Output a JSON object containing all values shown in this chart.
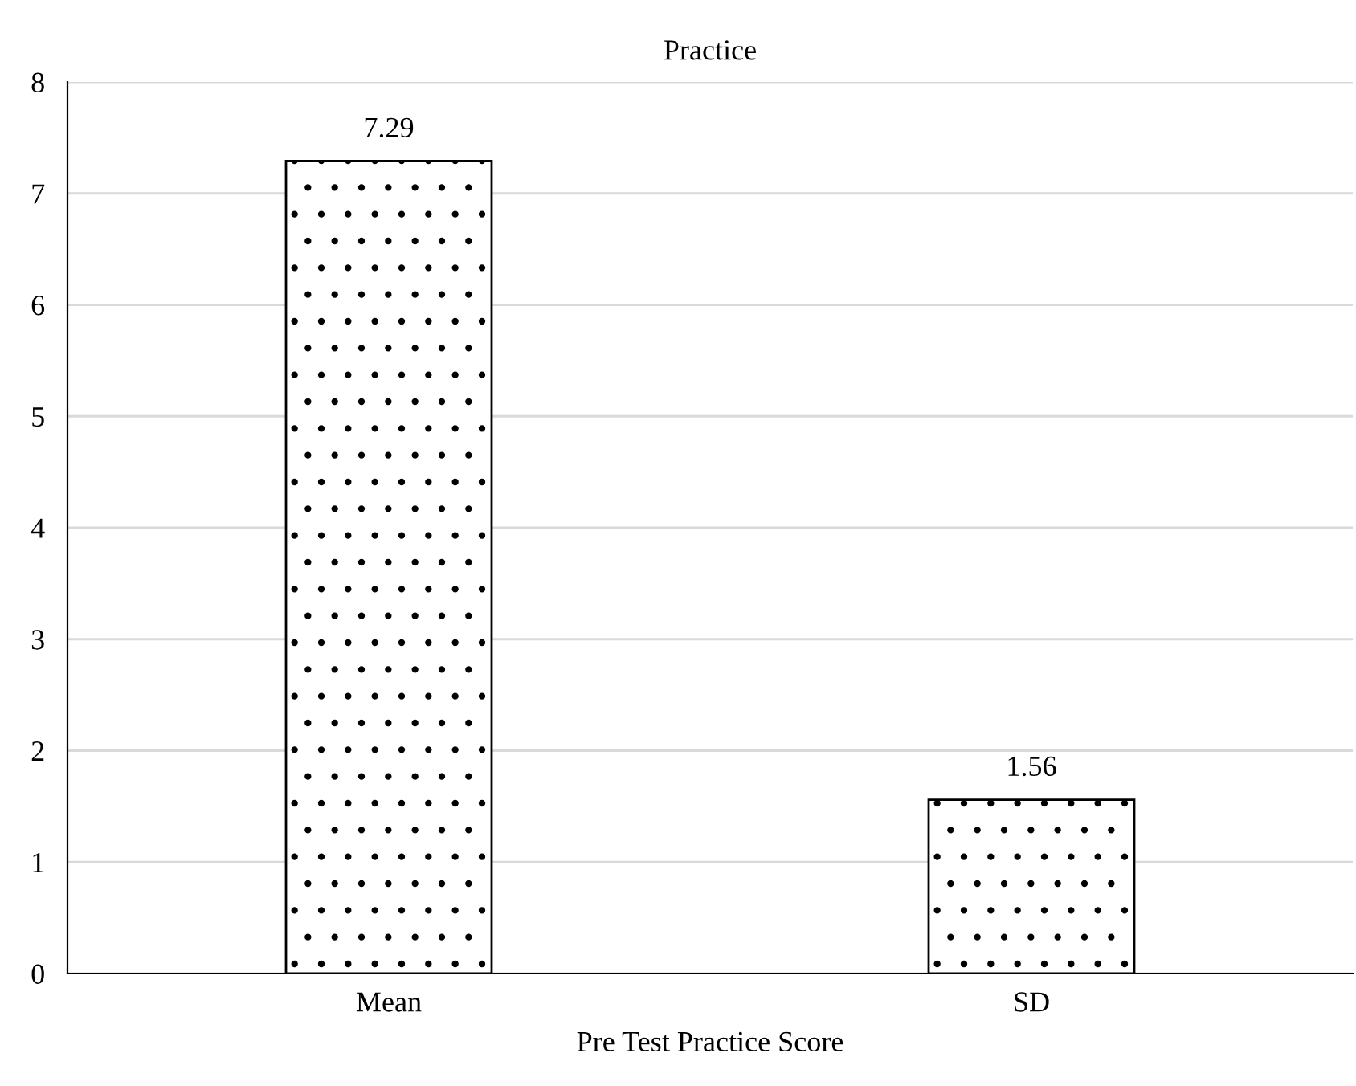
{
  "chart_data": {
    "type": "bar",
    "title": "Practice",
    "xlabel": "Pre Test Practice Score",
    "categories": [
      "Mean",
      "SD"
    ],
    "values": [
      7.29,
      1.56
    ],
    "color": "#000000",
    "ylim": [
      0,
      8
    ],
    "yticks": [
      0,
      1,
      2,
      3,
      4,
      5,
      6,
      7,
      8
    ],
    "grid": "y",
    "data_labels": true
  }
}
